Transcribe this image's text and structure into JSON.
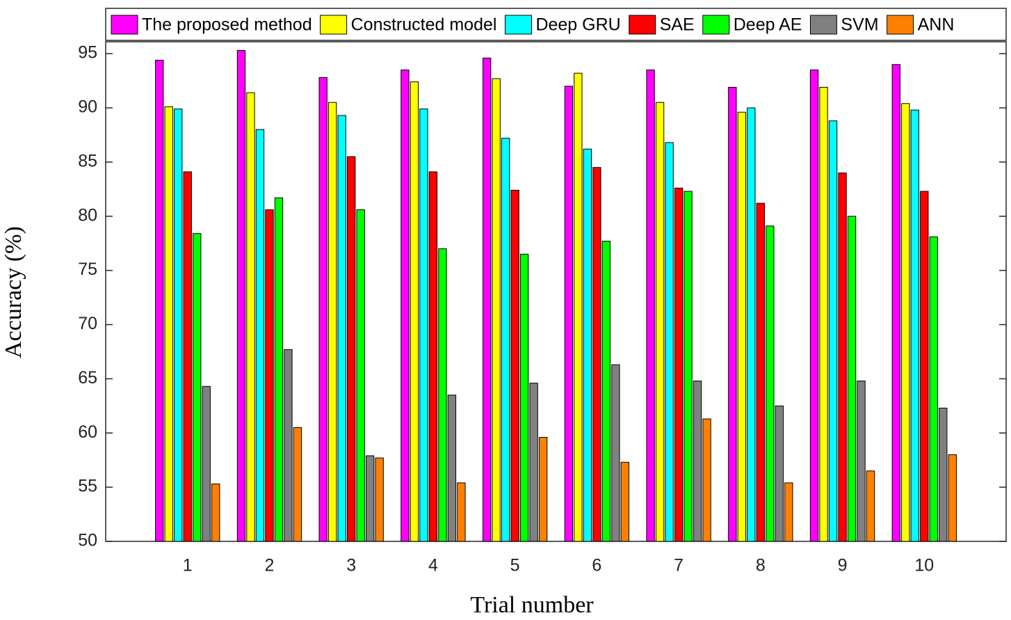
{
  "chart_data": {
    "type": "bar",
    "x_label": "Trial number",
    "y_label": "Accuracy (%)",
    "categories": [
      "1",
      "2",
      "3",
      "4",
      "5",
      "6",
      "7",
      "8",
      "9",
      "10"
    ],
    "series": [
      {
        "name": "The proposed method",
        "color": "#ff00ff",
        "values": [
          94.4,
          95.3,
          92.8,
          93.5,
          94.6,
          92.0,
          93.5,
          91.9,
          93.5,
          94.0
        ]
      },
      {
        "name": "Constructed model",
        "color": "#ffff00",
        "values": [
          90.1,
          91.4,
          90.5,
          92.4,
          92.7,
          93.2,
          90.5,
          89.6,
          91.9,
          90.4
        ]
      },
      {
        "name": "Deep GRU",
        "color": "#00ffff",
        "values": [
          89.9,
          88.0,
          89.3,
          89.9,
          87.2,
          86.2,
          86.8,
          90.0,
          88.8,
          89.8
        ]
      },
      {
        "name": "SAE",
        "color": "#ff0000",
        "values": [
          84.1,
          80.6,
          85.5,
          84.1,
          82.4,
          84.5,
          82.6,
          81.2,
          84.0,
          82.3
        ]
      },
      {
        "name": "Deep AE",
        "color": "#00ff00",
        "values": [
          78.4,
          81.7,
          80.6,
          77.0,
          76.5,
          77.7,
          82.3,
          79.1,
          80.0,
          78.1
        ]
      },
      {
        "name": "SVM",
        "color": "#808080",
        "values": [
          64.3,
          67.7,
          57.9,
          63.5,
          64.6,
          66.3,
          64.8,
          62.5,
          64.8,
          62.3
        ]
      },
      {
        "name": "ANN",
        "color": "#ff8000",
        "values": [
          55.3,
          60.5,
          57.7,
          55.4,
          59.6,
          57.3,
          61.3,
          55.4,
          56.5,
          58.0
        ]
      }
    ],
    "ylim": [
      50,
      96.1
    ],
    "yticks": [
      50,
      55,
      60,
      65,
      70,
      75,
      80,
      85,
      90,
      95
    ],
    "grid": false,
    "legend": "top"
  }
}
